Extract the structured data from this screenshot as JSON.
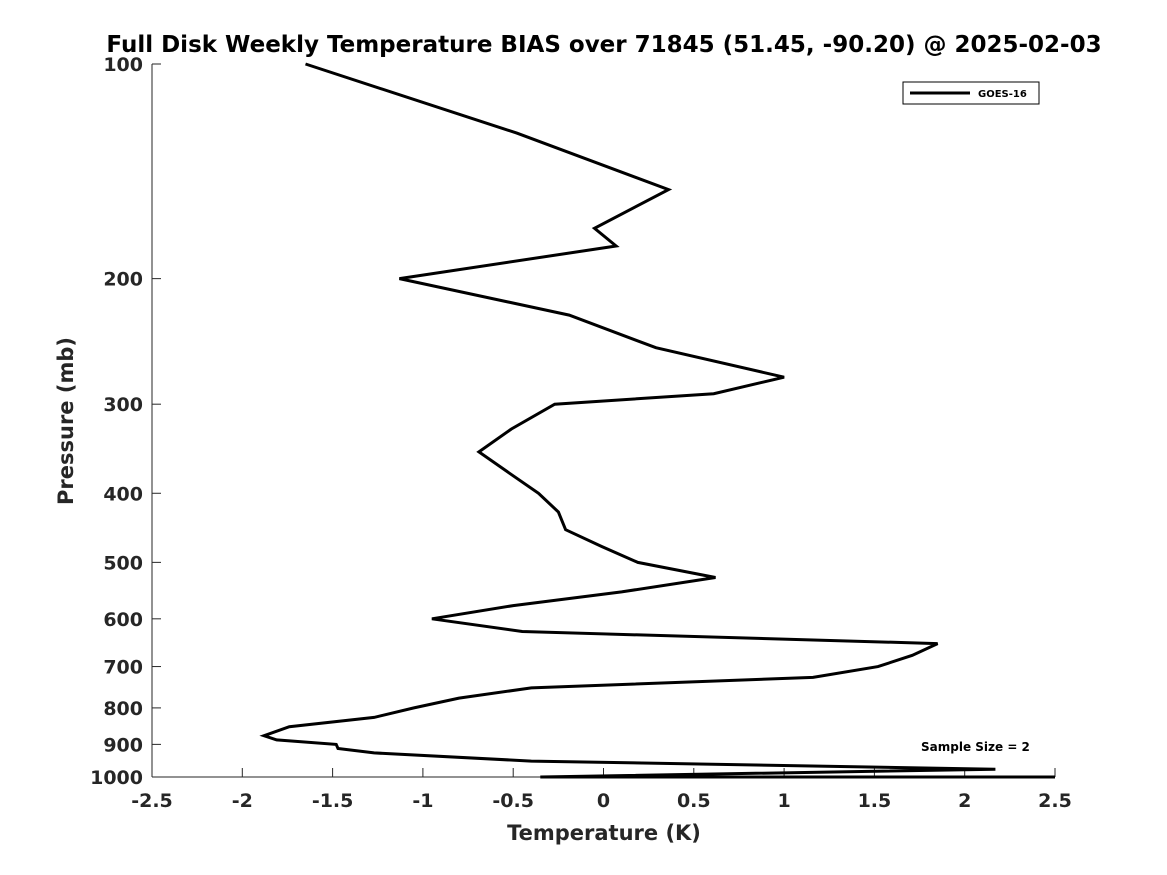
{
  "chart_data": {
    "type": "line",
    "title": "Full Disk Weekly Temperature BIAS over 71845 (51.45, -90.20) @ 2025-02-03",
    "xlabel": "Temperature (K)",
    "ylabel": "Pressure (mb)",
    "xlim": [
      -2.5,
      2.5
    ],
    "ylim": [
      100,
      1000
    ],
    "y_scale": "log",
    "y_reversed": true,
    "grid": false,
    "x_ticks": [
      -2.5,
      -2,
      -1.5,
      -1,
      -0.5,
      0,
      0.5,
      1,
      1.5,
      2,
      2.5
    ],
    "x_tick_labels": [
      "-2.5",
      "-2",
      "-1.5",
      "-1",
      "-0.5",
      "0",
      "0.5",
      "1",
      "1.5",
      "2",
      "2.5"
    ],
    "y_ticks": [
      100,
      200,
      300,
      400,
      500,
      600,
      700,
      800,
      900,
      1000
    ],
    "y_tick_labels": [
      "100",
      "200",
      "300",
      "400",
      "500",
      "600",
      "700",
      "800",
      "900",
      "1000"
    ],
    "legend": {
      "position": "top-right",
      "entries": [
        "GOES-16"
      ]
    },
    "annotation": "Sample Size = 2",
    "series": [
      {
        "name": "GOES-16",
        "color": "#000000",
        "points": [
          {
            "x": -1.65,
            "p": 100
          },
          {
            "x": -0.48,
            "p": 125
          },
          {
            "x": 0.36,
            "p": 150
          },
          {
            "x": -0.05,
            "p": 170
          },
          {
            "x": 0.07,
            "p": 180
          },
          {
            "x": -1.13,
            "p": 200
          },
          {
            "x": -0.19,
            "p": 225
          },
          {
            "x": 0.29,
            "p": 250
          },
          {
            "x": 1.0,
            "p": 275
          },
          {
            "x": 0.61,
            "p": 290
          },
          {
            "x": -0.27,
            "p": 300
          },
          {
            "x": -0.51,
            "p": 325
          },
          {
            "x": -0.69,
            "p": 350
          },
          {
            "x": -0.52,
            "p": 375
          },
          {
            "x": -0.36,
            "p": 400
          },
          {
            "x": -0.25,
            "p": 425
          },
          {
            "x": -0.21,
            "p": 450
          },
          {
            "x": -0.01,
            "p": 475
          },
          {
            "x": 0.19,
            "p": 500
          },
          {
            "x": 0.62,
            "p": 525
          },
          {
            "x": 0.1,
            "p": 550
          },
          {
            "x": -0.5,
            "p": 575
          },
          {
            "x": -0.95,
            "p": 600
          },
          {
            "x": -0.45,
            "p": 625
          },
          {
            "x": 1.85,
            "p": 650
          },
          {
            "x": 1.71,
            "p": 675
          },
          {
            "x": 1.52,
            "p": 700
          },
          {
            "x": 1.16,
            "p": 725
          },
          {
            "x": -0.4,
            "p": 750
          },
          {
            "x": -0.8,
            "p": 775
          },
          {
            "x": -1.05,
            "p": 800
          },
          {
            "x": -1.27,
            "p": 825
          },
          {
            "x": -1.74,
            "p": 850
          },
          {
            "x": -1.88,
            "p": 875
          },
          {
            "x": -1.81,
            "p": 887
          },
          {
            "x": -1.48,
            "p": 900
          },
          {
            "x": -1.47,
            "p": 912
          },
          {
            "x": -1.27,
            "p": 925
          },
          {
            "x": -0.4,
            "p": 950
          },
          {
            "x": 2.17,
            "p": 975
          },
          {
            "x": -0.35,
            "p": 1000
          },
          {
            "x": 2.5,
            "p": 1000
          }
        ]
      }
    ]
  }
}
